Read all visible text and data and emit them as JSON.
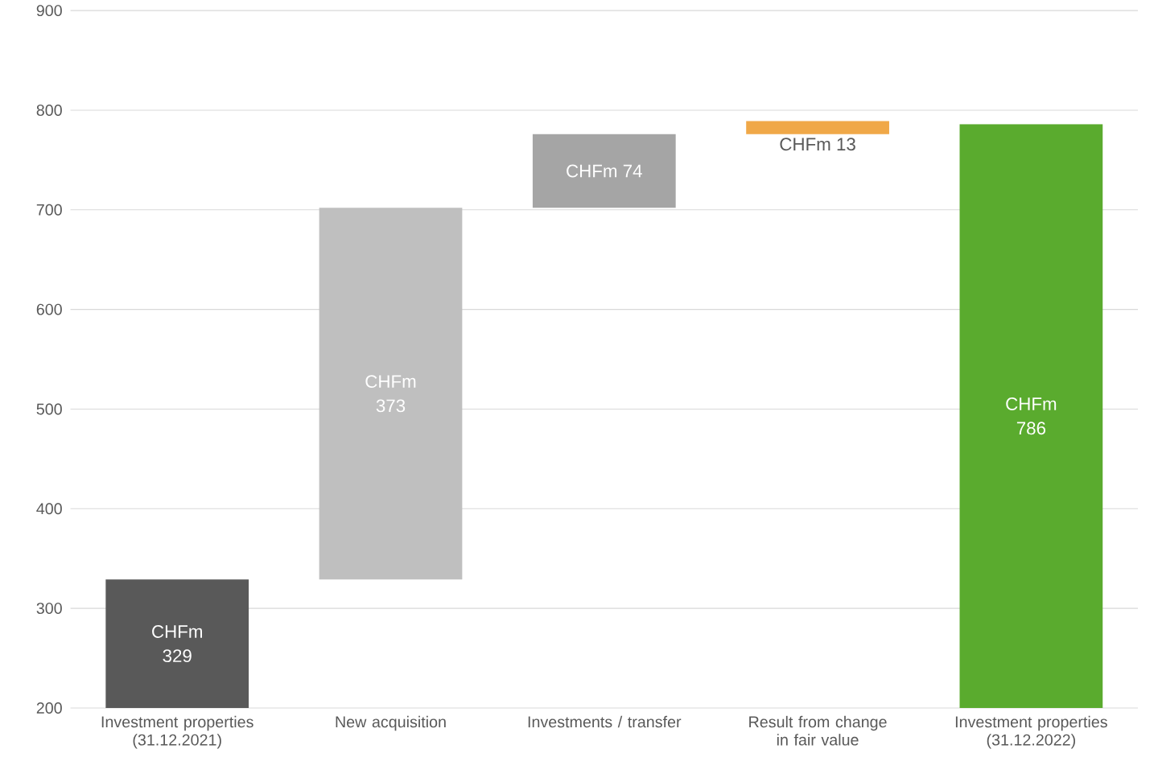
{
  "chart_data": {
    "type": "bar",
    "categories": [
      "Investment properties (31.12.2021)",
      "New acquisition",
      "Investments / transfer",
      "Result from change in fair value",
      "Investment properties (31.12.2022)"
    ],
    "values": [
      329,
      373,
      74,
      13,
      786
    ],
    "base": [
      0,
      329,
      702,
      776,
      0
    ],
    "colors": [
      "#595959",
      "#bfbfbf",
      "#a5a5a5",
      "#f0a848",
      "#5aab2e"
    ],
    "value_labels": [
      "CHFm 329",
      "CHFm 373",
      "CHFm 74",
      "CHFm 13",
      "CHFm 786"
    ],
    "ylim": [
      200,
      900
    ],
    "yticks": [
      200,
      300,
      400,
      500,
      600,
      700,
      800,
      900
    ],
    "grid": "y"
  }
}
